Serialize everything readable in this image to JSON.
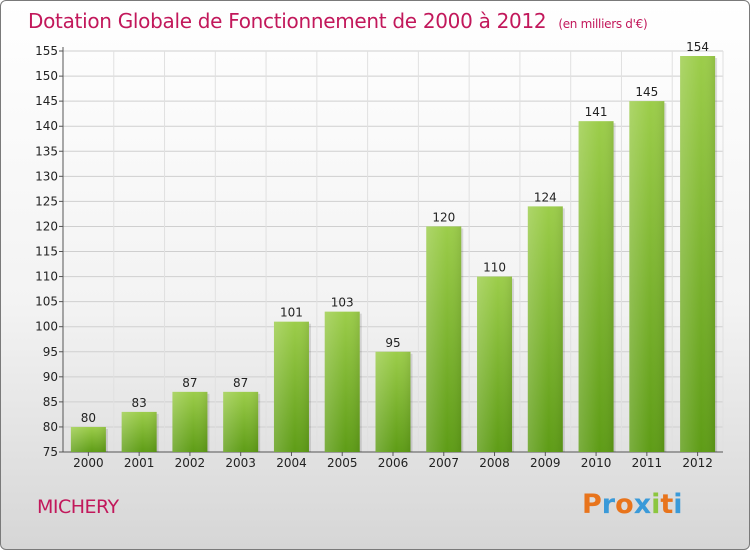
{
  "chart_data": {
    "type": "bar",
    "title": "Dotation Globale de Fonctionnement de 2000 à 2012",
    "subtitle": "(en milliers d'€)",
    "categories": [
      "2000",
      "2001",
      "2002",
      "2003",
      "2004",
      "2005",
      "2006",
      "2007",
      "2008",
      "2009",
      "2010",
      "2011",
      "2012"
    ],
    "values": [
      80,
      83,
      87,
      87,
      101,
      103,
      95,
      120,
      110,
      124,
      141,
      145,
      154
    ],
    "ylim": [
      75,
      155
    ],
    "yticks": [
      75,
      80,
      85,
      90,
      95,
      100,
      105,
      110,
      115,
      120,
      125,
      130,
      135,
      140,
      145,
      150,
      155
    ],
    "xlabel": "",
    "ylabel": "",
    "grid": true,
    "bar_color": "#7ab830"
  },
  "footer": {
    "commune": "MICHERY",
    "brand": "Proxiti",
    "brand_colors": [
      "#e8741c",
      "#3a9ad9",
      "#e8741c",
      "#3a9ad9",
      "#8cc63f",
      "#e8741c",
      "#3a9ad9"
    ]
  }
}
